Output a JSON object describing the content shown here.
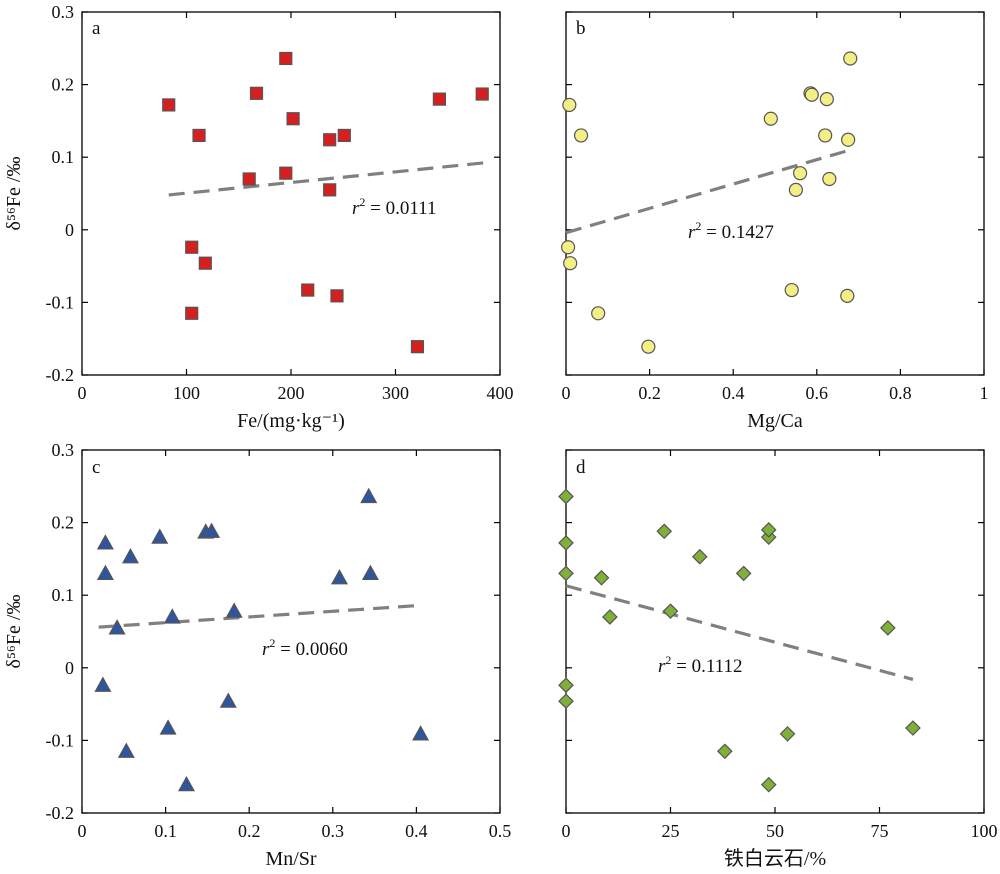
{
  "ylabel": "δ⁵⁶Fe /‰",
  "colors": {
    "fe_marker": "#d62020",
    "mgca_marker": "#f4ef85",
    "mnsr_marker": "#2f559f",
    "siderite_marker": "#7fb038",
    "marker_edge": "#555555",
    "trend_line": "#808080"
  },
  "chart_data": [
    {
      "panel": "a",
      "type": "scatter",
      "marker": "square",
      "xlabel": "Fe/(mg·kg⁻¹)",
      "ylabel": "δ⁵⁶Fe /‰",
      "xlim": [
        0,
        400
      ],
      "ylim": [
        -0.2,
        0.3
      ],
      "xticks": [
        "0",
        "100",
        "200",
        "300",
        "400"
      ],
      "yticks": [
        "-0.2",
        "-0.1",
        "0",
        "0.1",
        "0.2",
        "0.3"
      ],
      "points": [
        {
          "x": 83,
          "y": 0.172
        },
        {
          "x": 112,
          "y": 0.13
        },
        {
          "x": 105,
          "y": -0.024
        },
        {
          "x": 118,
          "y": -0.046
        },
        {
          "x": 105,
          "y": -0.115
        },
        {
          "x": 160,
          "y": 0.07
        },
        {
          "x": 167,
          "y": 0.188
        },
        {
          "x": 195,
          "y": 0.236
        },
        {
          "x": 195,
          "y": 0.078
        },
        {
          "x": 202,
          "y": 0.153
        },
        {
          "x": 216,
          "y": -0.083
        },
        {
          "x": 237,
          "y": 0.124
        },
        {
          "x": 237,
          "y": 0.055
        },
        {
          "x": 244,
          "y": -0.091
        },
        {
          "x": 251,
          "y": 0.13
        },
        {
          "x": 321,
          "y": -0.161
        },
        {
          "x": 342,
          "y": 0.18
        },
        {
          "x": 383,
          "y": 0.187
        }
      ],
      "trend": {
        "x": [
          83,
          390
        ],
        "y": [
          0.048,
          0.093
        ]
      },
      "annotation": {
        "label": "r",
        "exponent": "2",
        "value": " = 0.0111"
      }
    },
    {
      "panel": "b",
      "type": "scatter",
      "marker": "circle",
      "xlabel": "Mg/Ca",
      "ylabel": "",
      "xlim": [
        0,
        1
      ],
      "ylim": [
        -0.2,
        0.3
      ],
      "xticks": [
        "0",
        "0.2",
        "0.4",
        "0.6",
        "0.8",
        "1"
      ],
      "yticks": [],
      "points": [
        {
          "x": 0.008,
          "y": 0.172
        },
        {
          "x": 0.036,
          "y": 0.13
        },
        {
          "x": 0.005,
          "y": -0.024
        },
        {
          "x": 0.01,
          "y": -0.046
        },
        {
          "x": 0.077,
          "y": -0.115
        },
        {
          "x": 0.197,
          "y": -0.161
        },
        {
          "x": 0.49,
          "y": 0.153
        },
        {
          "x": 0.54,
          "y": -0.083
        },
        {
          "x": 0.55,
          "y": 0.055
        },
        {
          "x": 0.56,
          "y": 0.078
        },
        {
          "x": 0.585,
          "y": 0.188
        },
        {
          "x": 0.588,
          "y": 0.186
        },
        {
          "x": 0.62,
          "y": 0.13
        },
        {
          "x": 0.624,
          "y": 0.18
        },
        {
          "x": 0.63,
          "y": 0.07
        },
        {
          "x": 0.673,
          "y": -0.091
        },
        {
          "x": 0.675,
          "y": 0.124
        },
        {
          "x": 0.68,
          "y": 0.236
        }
      ],
      "trend": {
        "x": [
          0,
          0.68
        ],
        "y": [
          -0.004,
          0.11
        ]
      },
      "annotation": {
        "label": "r",
        "exponent": "2",
        "value": " = 0.1427"
      }
    },
    {
      "panel": "c",
      "type": "scatter",
      "marker": "triangle",
      "xlabel": "Mn/Sr",
      "ylabel": "δ⁵⁶Fe /‰",
      "xlim": [
        0,
        0.5
      ],
      "ylim": [
        -0.2,
        0.3
      ],
      "xticks": [
        "0",
        "0.1",
        "0.2",
        "0.3",
        "0.4",
        "0.5"
      ],
      "yticks": [
        "-0.2",
        "-0.1",
        "0",
        "0.1",
        "0.2",
        "0.3"
      ],
      "points": [
        {
          "x": 0.025,
          "y": -0.024
        },
        {
          "x": 0.028,
          "y": 0.172
        },
        {
          "x": 0.028,
          "y": 0.13
        },
        {
          "x": 0.042,
          "y": 0.055
        },
        {
          "x": 0.053,
          "y": -0.115
        },
        {
          "x": 0.058,
          "y": 0.153
        },
        {
          "x": 0.093,
          "y": 0.18
        },
        {
          "x": 0.103,
          "y": -0.083
        },
        {
          "x": 0.108,
          "y": 0.07
        },
        {
          "x": 0.125,
          "y": -0.161
        },
        {
          "x": 0.148,
          "y": 0.187
        },
        {
          "x": 0.155,
          "y": 0.188
        },
        {
          "x": 0.175,
          "y": -0.046
        },
        {
          "x": 0.182,
          "y": 0.078
        },
        {
          "x": 0.308,
          "y": 0.124
        },
        {
          "x": 0.343,
          "y": 0.236
        },
        {
          "x": 0.345,
          "y": 0.13
        },
        {
          "x": 0.405,
          "y": -0.091
        }
      ],
      "trend": {
        "x": [
          0.02,
          0.405
        ],
        "y": [
          0.056,
          0.086
        ]
      },
      "annotation": {
        "label": "r",
        "exponent": "2",
        "value": " = 0.0060"
      }
    },
    {
      "panel": "d",
      "type": "scatter",
      "marker": "diamond",
      "xlabel": "铁白云石/%",
      "ylabel": "",
      "xlim": [
        0,
        100
      ],
      "ylim": [
        -0.2,
        0.3
      ],
      "xticks": [
        "0",
        "25",
        "50",
        "75",
        "100"
      ],
      "yticks": [],
      "points": [
        {
          "x": 0,
          "y": 0.236
        },
        {
          "x": 0,
          "y": 0.172
        },
        {
          "x": 0,
          "y": 0.13
        },
        {
          "x": 0,
          "y": -0.024
        },
        {
          "x": 0,
          "y": -0.046
        },
        {
          "x": 8.5,
          "y": 0.124
        },
        {
          "x": 10.5,
          "y": 0.07
        },
        {
          "x": 23.5,
          "y": 0.188
        },
        {
          "x": 25,
          "y": 0.078
        },
        {
          "x": 32,
          "y": 0.153
        },
        {
          "x": 38,
          "y": -0.115
        },
        {
          "x": 42.5,
          "y": 0.13
        },
        {
          "x": 48.5,
          "y": 0.18
        },
        {
          "x": 48.5,
          "y": 0.19
        },
        {
          "x": 48.5,
          "y": -0.161
        },
        {
          "x": 53,
          "y": -0.091
        },
        {
          "x": 77,
          "y": 0.055
        },
        {
          "x": 83,
          "y": -0.083
        }
      ],
      "trend": {
        "x": [
          0,
          83
        ],
        "y": [
          0.113,
          -0.016
        ]
      },
      "annotation": {
        "label": "r",
        "exponent": "2",
        "value": " = 0.1112"
      }
    }
  ]
}
